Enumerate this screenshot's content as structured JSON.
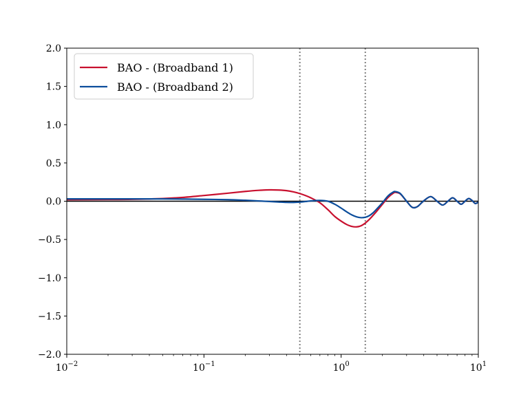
{
  "chart_data": {
    "type": "line",
    "title": "",
    "xlabel": "",
    "ylabel": "",
    "xscale": "log",
    "xlim": [
      0.01,
      10
    ],
    "ylim": [
      -2.0,
      2.0
    ],
    "grid": false,
    "legend_position": "top-left",
    "x_ticks": [
      {
        "value": 0.01,
        "label": "10^{-2}",
        "base": "10",
        "exp": "−2"
      },
      {
        "value": 0.1,
        "label": "10^{-1}",
        "base": "10",
        "exp": "−1"
      },
      {
        "value": 1,
        "label": "10^{0}",
        "base": "10",
        "exp": "0"
      },
      {
        "value": 10,
        "label": "10^{1}",
        "base": "10",
        "exp": "1"
      }
    ],
    "y_ticks": [
      {
        "value": 2.0,
        "label": "2.0"
      },
      {
        "value": 1.5,
        "label": "1.5"
      },
      {
        "value": 1.0,
        "label": "1.0"
      },
      {
        "value": 0.5,
        "label": "0.5"
      },
      {
        "value": 0.0,
        "label": "0.0"
      },
      {
        "value": -0.5,
        "label": "−0.5"
      },
      {
        "value": -1.0,
        "label": "−1.0"
      },
      {
        "value": -1.5,
        "label": "−1.5"
      },
      {
        "value": -2.0,
        "label": "−2.0"
      }
    ],
    "reference_lines": [
      {
        "orientation": "horizontal",
        "y": 0,
        "color": "#000000",
        "style": "solid"
      },
      {
        "orientation": "vertical",
        "x": 0.5,
        "color": "#808080",
        "style": "dotted"
      },
      {
        "orientation": "vertical",
        "x": 1.5,
        "color": "#808080",
        "style": "dotted"
      }
    ],
    "series": [
      {
        "name": "BAO - (Broadband 1)",
        "color": "#c8102e",
        "x": [
          0.01,
          0.02,
          0.03,
          0.05,
          0.07,
          0.1,
          0.15,
          0.2,
          0.25,
          0.3,
          0.35,
          0.4,
          0.45,
          0.5,
          0.55,
          0.6,
          0.7,
          0.8,
          0.9,
          1.0,
          1.1,
          1.2,
          1.3,
          1.4,
          1.5,
          1.6,
          1.7,
          1.8,
          2.0,
          2.2,
          2.4,
          2.5,
          2.7,
          3.0,
          3.3,
          3.6,
          4.0,
          4.5,
          5.0,
          5.5,
          6.0,
          6.5,
          7.0,
          7.5,
          8.0,
          8.5,
          9.0,
          9.5,
          10.0
        ],
        "y": [
          0.02,
          0.022,
          0.025,
          0.035,
          0.05,
          0.075,
          0.105,
          0.128,
          0.142,
          0.148,
          0.146,
          0.138,
          0.122,
          0.1,
          0.074,
          0.045,
          -0.02,
          -0.11,
          -0.2,
          -0.26,
          -0.305,
          -0.33,
          -0.335,
          -0.32,
          -0.285,
          -0.24,
          -0.19,
          -0.14,
          -0.04,
          0.05,
          0.105,
          0.115,
          0.095,
          0.0,
          -0.08,
          -0.07,
          0.005,
          0.06,
          0.0,
          -0.05,
          0.0,
          0.045,
          0.0,
          -0.04,
          0.0,
          0.035,
          0.01,
          -0.03,
          -0.01
        ]
      },
      {
        "name": "BAO - (Broadband 2)",
        "color": "#0b4d9b",
        "x": [
          0.01,
          0.02,
          0.03,
          0.05,
          0.07,
          0.1,
          0.15,
          0.2,
          0.25,
          0.3,
          0.35,
          0.4,
          0.45,
          0.5,
          0.55,
          0.6,
          0.7,
          0.8,
          0.9,
          1.0,
          1.1,
          1.2,
          1.3,
          1.4,
          1.5,
          1.6,
          1.7,
          1.8,
          2.0,
          2.2,
          2.4,
          2.5,
          2.7,
          3.0,
          3.3,
          3.6,
          4.0,
          4.5,
          5.0,
          5.5,
          6.0,
          6.5,
          7.0,
          7.5,
          8.0,
          8.5,
          9.0,
          9.5,
          10.0
        ],
        "y": [
          0.03,
          0.03,
          0.03,
          0.03,
          0.028,
          0.025,
          0.02,
          0.012,
          0.004,
          -0.004,
          -0.01,
          -0.015,
          -0.016,
          -0.012,
          -0.004,
          0.004,
          0.01,
          0.0,
          -0.04,
          -0.09,
          -0.14,
          -0.18,
          -0.205,
          -0.215,
          -0.21,
          -0.19,
          -0.155,
          -0.11,
          -0.02,
          0.07,
          0.12,
          0.125,
          0.1,
          0.0,
          -0.08,
          -0.07,
          0.005,
          0.06,
          0.0,
          -0.05,
          0.0,
          0.045,
          0.0,
          -0.04,
          0.0,
          0.035,
          0.01,
          -0.03,
          -0.01
        ]
      }
    ]
  }
}
